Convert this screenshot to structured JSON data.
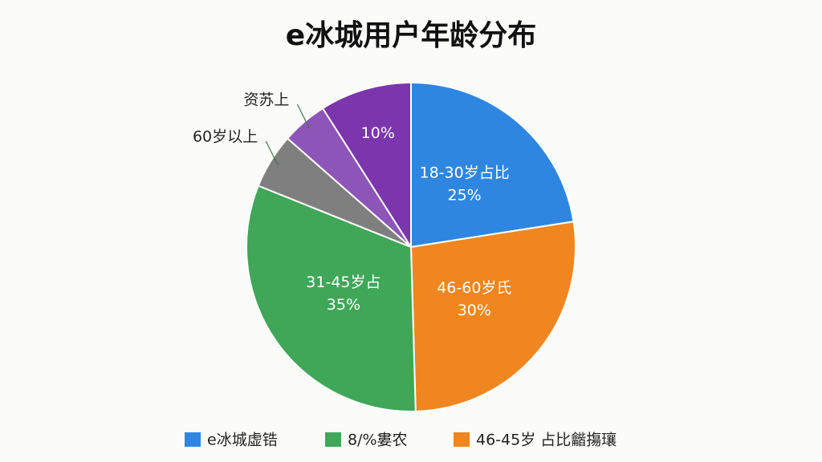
{
  "chart_data": {
    "type": "pie",
    "title": "e冰城用户年龄分布",
    "categories": [
      "18-30岁占比",
      "46-60岁氏",
      "31-45岁占",
      "60岁以上",
      "资苏上",
      null
    ],
    "values": [
      25,
      30,
      35,
      6,
      5,
      10
    ],
    "value_labels": [
      "25%",
      "30%",
      "35%",
      null,
      null,
      "10%"
    ],
    "colors": [
      "#2f86e0",
      "#f0861f",
      "#3fa757",
      "#7f7f7f",
      "#8e55b8",
      "#7b35ad"
    ],
    "legend": [
      {
        "label": "e冰城虚锆",
        "color": "#2f86e0"
      },
      {
        "label": "8/%婁农",
        "color": "#3fa757"
      },
      {
        "label": "46-45岁 占比龤摥瓖",
        "color": "#f0861f"
      }
    ]
  }
}
